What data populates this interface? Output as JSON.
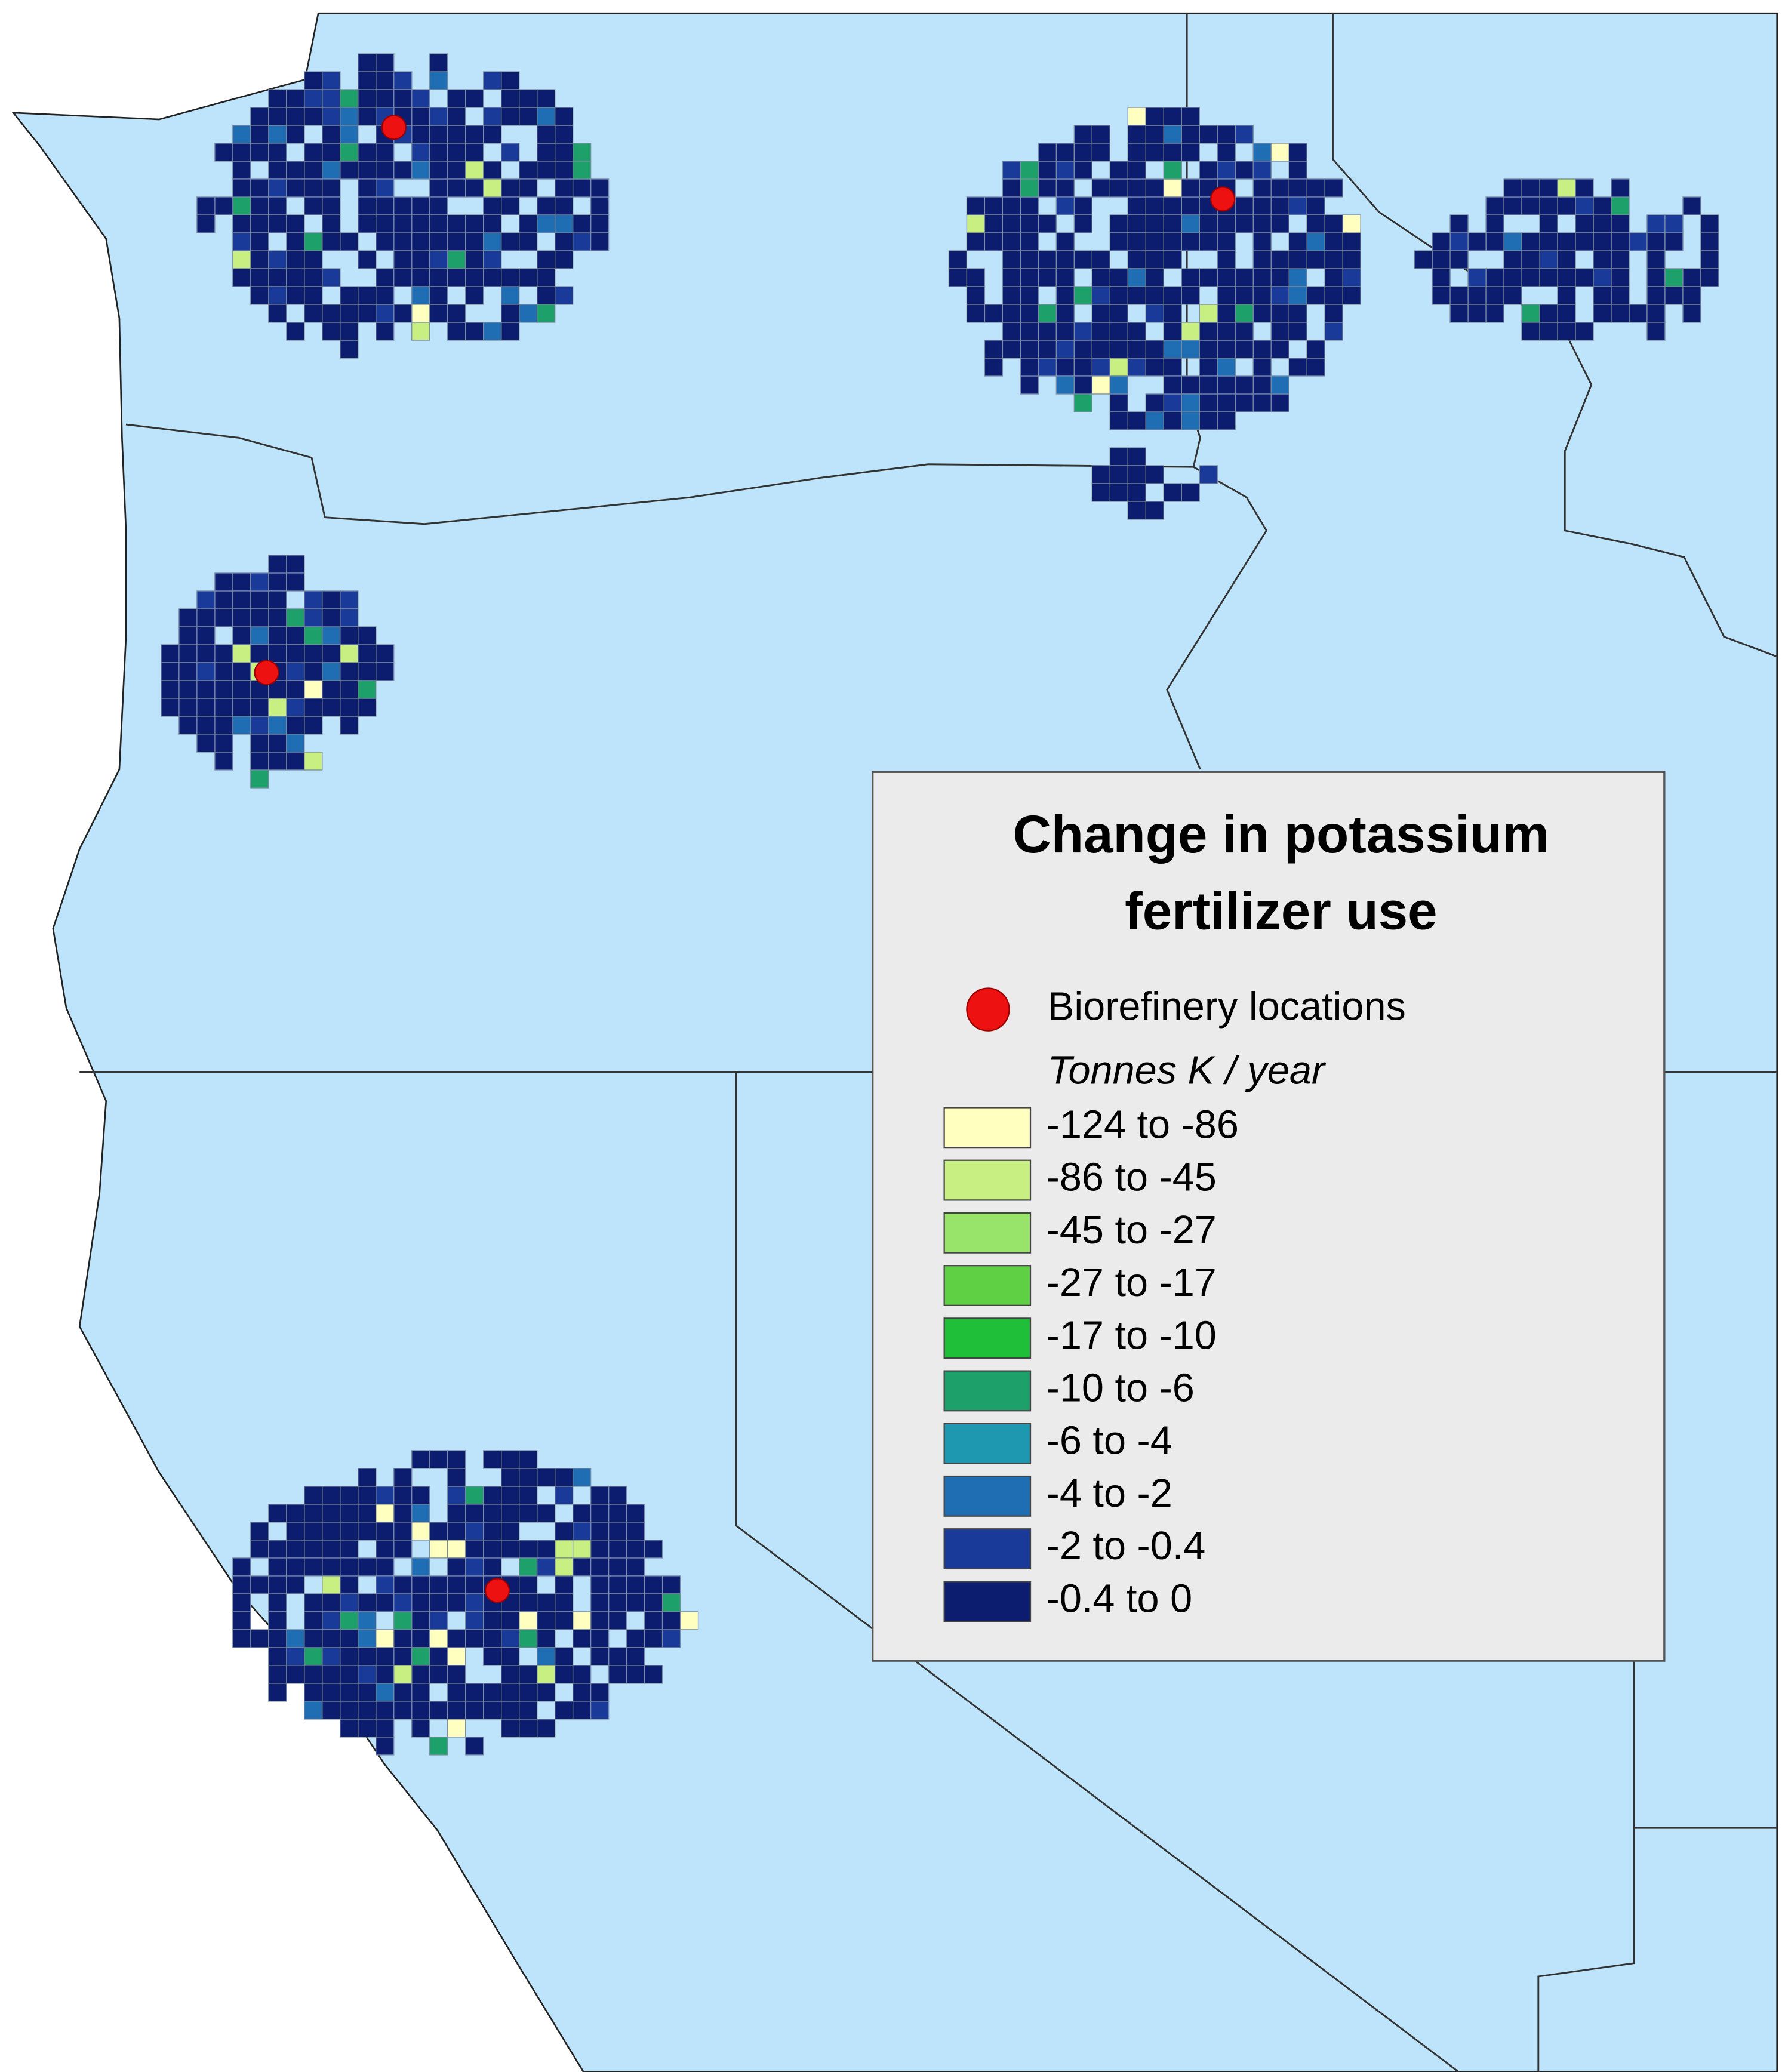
{
  "legend": {
    "title_lines": [
      "Change in potassium",
      "fertilizer use"
    ],
    "marker_label": "Biorefinery locations",
    "marker_color": "#ee1111",
    "units": "Tonnes K / year",
    "classes": [
      {
        "label": "-124 to -86",
        "color": "#ffffc0"
      },
      {
        "label": "-86 to -45",
        "color": "#c8ef82"
      },
      {
        "label": "-45 to -27",
        "color": "#98e46a"
      },
      {
        "label": "-27 to -17",
        "color": "#5fd044"
      },
      {
        "label": "-17 to -10",
        "color": "#1fbf3a"
      },
      {
        "label": "-10 to -6",
        "color": "#1ea06a"
      },
      {
        "label": "-6 to -4",
        "color": "#1e98b0"
      },
      {
        "label": "-4 to -2",
        "color": "#1f6eb4"
      },
      {
        "label": "-2 to -0.4",
        "color": "#1a3a9a"
      },
      {
        "label": "-0.4 to 0",
        "color": "#0c1c6e"
      }
    ]
  }
}
